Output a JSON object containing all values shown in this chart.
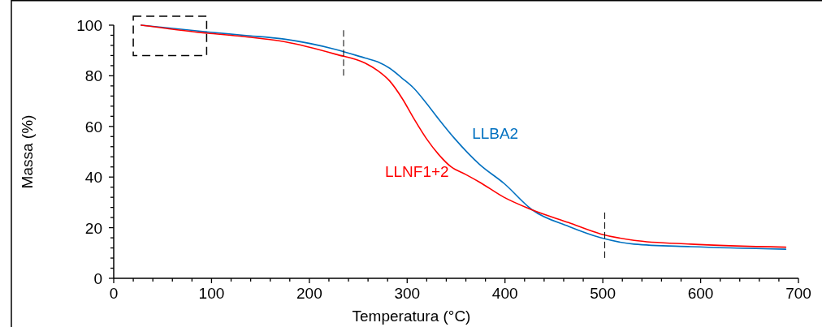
{
  "chart_data": {
    "type": "line",
    "xlabel": "Temperatura (°C)",
    "ylabel": "Massa (%)",
    "xlim": [
      0,
      700
    ],
    "ylim": [
      0,
      100
    ],
    "xticks": [
      0,
      {
        "value": 20,
        "label": null
      },
      {
        "value": 40,
        "label": null
      },
      {
        "value": 60,
        "label": null
      },
      {
        "value": 80,
        "label": null
      },
      100,
      {
        "value": 120,
        "label": null
      },
      {
        "value": 140,
        "label": null
      },
      {
        "value": 160,
        "label": null
      },
      {
        "value": 180,
        "label": null
      },
      200,
      {
        "value": 220,
        "label": null
      },
      {
        "value": 240,
        "label": null
      },
      {
        "value": 260,
        "label": null
      },
      {
        "value": 280,
        "label": null
      },
      300,
      {
        "value": 320,
        "label": null
      },
      {
        "value": 340,
        "label": null
      },
      {
        "value": 360,
        "label": null
      },
      {
        "value": 380,
        "label": null
      },
      400,
      {
        "value": 420,
        "label": null
      },
      {
        "value": 440,
        "label": null
      },
      {
        "value": 460,
        "label": null
      },
      {
        "value": 480,
        "label": null
      },
      500,
      {
        "value": 520,
        "label": null
      },
      {
        "value": 540,
        "label": null
      },
      {
        "value": 560,
        "label": null
      },
      {
        "value": 580,
        "label": null
      },
      600,
      {
        "value": 620,
        "label": null
      },
      {
        "value": 640,
        "label": null
      },
      {
        "value": 660,
        "label": null
      },
      {
        "value": 680,
        "label": null
      },
      700
    ],
    "yticks": [
      0,
      {
        "value": 4,
        "label": null
      },
      {
        "value": 8,
        "label": null
      },
      {
        "value": 12,
        "label": null
      },
      {
        "value": 16,
        "label": null
      },
      20,
      {
        "value": 24,
        "label": null
      },
      {
        "value": 28,
        "label": null
      },
      {
        "value": 32,
        "label": null
      },
      {
        "value": 36,
        "label": null
      },
      40,
      {
        "value": 44,
        "label": null
      },
      {
        "value": 48,
        "label": null
      },
      {
        "value": 52,
        "label": null
      },
      {
        "value": 56,
        "label": null
      },
      60,
      {
        "value": 64,
        "label": null
      },
      {
        "value": 68,
        "label": null
      },
      {
        "value": 72,
        "label": null
      },
      {
        "value": 76,
        "label": null
      },
      80,
      {
        "value": 84,
        "label": null
      },
      {
        "value": 88,
        "label": null
      },
      {
        "value": 92,
        "label": null
      },
      {
        "value": 96,
        "label": null
      },
      100
    ],
    "grid": false,
    "legend": false,
    "marker": "none",
    "line_style": "solid",
    "series": [
      {
        "name": "LLBA2",
        "color": "#0070c0",
        "x": [
          28,
          91,
          133,
          174,
          227,
          257,
          270,
          282,
          295,
          307,
          320,
          332,
          349,
          374,
          399,
          428,
          465,
          498,
          532,
          590,
          687
        ],
        "values": [
          100,
          97.5,
          96,
          94.5,
          90.4,
          87,
          85.5,
          83,
          79,
          75,
          69,
          63,
          55,
          45,
          37.5,
          27,
          20.5,
          16,
          13.5,
          12.5,
          11.5
        ]
      },
      {
        "name": "LLNF1+2",
        "color": "#ff0000",
        "x": [
          28,
          91,
          133,
          174,
          227,
          257,
          270,
          282,
          295,
          307,
          320,
          332,
          345,
          360,
          374,
          399,
          428,
          465,
          498,
          532,
          590,
          687
        ],
        "values": [
          100,
          97,
          95.5,
          93.5,
          88.5,
          85,
          82,
          78,
          71,
          63,
          55,
          49,
          44,
          41,
          38,
          32,
          27,
          22,
          17.5,
          15,
          13.5,
          12.3
        ]
      }
    ]
  }
}
